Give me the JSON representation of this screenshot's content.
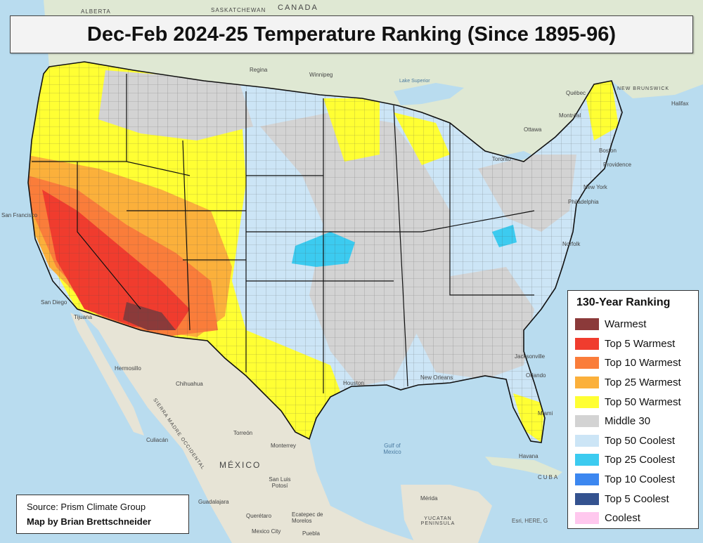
{
  "title": "Dec-Feb 2024-25 Temperature Ranking (Since 1895-96)",
  "legend": {
    "title": "130-Year Ranking",
    "items": [
      {
        "label": "Warmest",
        "color": "#8b3a3a"
      },
      {
        "label": "Top 5 Warmest",
        "color": "#f03c2e"
      },
      {
        "label": "Top 10 Warmest",
        "color": "#fa7d3a"
      },
      {
        "label": "Top 25 Warmest",
        "color": "#fbb03b"
      },
      {
        "label": "Top 50 Warmest",
        "color": "#ffff33"
      },
      {
        "label": "Middle 30",
        "color": "#d3d3d3"
      },
      {
        "label": "Top 50 Coolest",
        "color": "#cce5f6"
      },
      {
        "label": "Top 25 Coolest",
        "color": "#3ccbf0"
      },
      {
        "label": "Top 10 Coolest",
        "color": "#3c87f0"
      },
      {
        "label": "Top 5 Coolest",
        "color": "#34528f"
      },
      {
        "label": "Coolest",
        "color": "#ffc8ee"
      }
    ]
  },
  "source": "Source: Prism Climate Group",
  "author": "Map by Brian Brettschneider",
  "attribution": "Esri, HERE, G",
  "place_labels": {
    "canada": "CANADA",
    "saskatchewan": "SASKATCHEWAN",
    "alberta": "ALBERTA",
    "regina": "Regina",
    "winnipeg": "Winnipeg",
    "lake_superior": "Lake Superior",
    "quebec": "Québec",
    "montreal": "Montréal",
    "ottawa": "Ottawa",
    "toronto": "Toronto",
    "boston": "Boston",
    "providence": "Providence",
    "new_york": "New York",
    "philadelphia": "Philadelphia",
    "norfolk": "Norfolk",
    "halifax": "Halifax",
    "new_brunswick": "NEW BRUNSWICK",
    "mexico": "MÉXICO",
    "gulf_of_mexico": "Gulf of Mexico",
    "hermosillo": "Hermosillo",
    "chihuahua": "Chihuahua",
    "torreon": "Torreón",
    "monterrey": "Monterrey",
    "culiacan": "Culiacán",
    "san_luis_potosi": "San Luis Potosí",
    "guadalajara": "Guadalajara",
    "queretaro": "Querétaro",
    "ecatepec": "Ecatepec de Morelos",
    "mexico_city": "Mexico City",
    "puebla": "Puebla",
    "merida": "Mérida",
    "yucatan": "YUCATAN PENINSULA",
    "havana": "Havana",
    "cuba": "CUBA",
    "tijuana": "Tijuana",
    "san_diego": "San Diego",
    "san_francisco": "San Francisco",
    "houston": "Houston",
    "new_orleans": "New Orleans",
    "jacksonville": "Jacksonville",
    "orlando": "Orlando",
    "miami": "Miami",
    "sierra_madre": "SIERRA MADRE OCCIDENTAL"
  }
}
